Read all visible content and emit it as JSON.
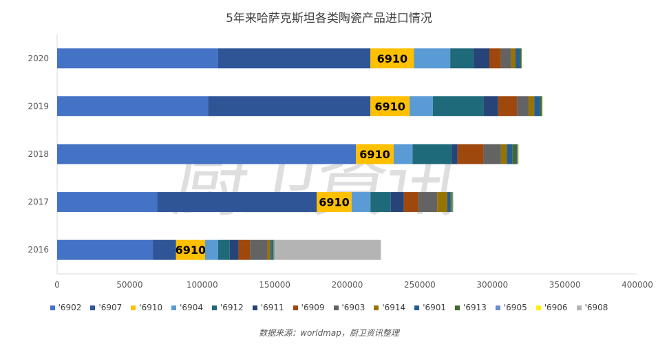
{
  "title": "5年来哈萨克斯坦各类陶瓷产品进口情况",
  "source": "数据来源：worldmap，厨卫资讯整理",
  "watermark_text": "厨卫資讯",
  "bar_label": "6910",
  "chart_data": {
    "type": "bar",
    "orientation": "horizontal",
    "stacked": true,
    "title": "5年来哈萨克斯坦各类陶瓷产品进口情况",
    "categories": [
      "2016",
      "2017",
      "2018",
      "2019",
      "2020"
    ],
    "xlim": [
      0,
      400000
    ],
    "xticks": [
      0,
      50000,
      100000,
      150000,
      200000,
      250000,
      300000,
      350000,
      400000
    ],
    "legend_position": "bottom",
    "grid": false,
    "series": [
      {
        "name": "'6902",
        "color": "#4472C4",
        "values": [
          66000,
          69000,
          206000,
          104000,
          111000
        ]
      },
      {
        "name": "'6907",
        "color": "#2F5597",
        "values": [
          16000,
          110000,
          0,
          112000,
          105000
        ]
      },
      {
        "name": "'6910",
        "color": "#FFC000",
        "values": [
          20000,
          24000,
          26000,
          27000,
          30000
        ]
      },
      {
        "name": "'6904",
        "color": "#5B9BD5",
        "values": [
          9000,
          13000,
          13000,
          16000,
          25000
        ]
      },
      {
        "name": "'6912",
        "color": "#1F6A7A",
        "values": [
          8000,
          14000,
          27000,
          35000,
          16000
        ]
      },
      {
        "name": "'6911",
        "color": "#264478",
        "values": [
          6000,
          9000,
          4000,
          10000,
          11000
        ]
      },
      {
        "name": "'6909",
        "color": "#9E480E",
        "values": [
          8000,
          10000,
          18000,
          13000,
          8000
        ]
      },
      {
        "name": "'6903",
        "color": "#636363",
        "values": [
          12000,
          13000,
          12000,
          8000,
          7000
        ]
      },
      {
        "name": "'6914",
        "color": "#997300",
        "values": [
          2000,
          7000,
          4000,
          4000,
          3000
        ]
      },
      {
        "name": "'6901",
        "color": "#255E91",
        "values": [
          1000,
          2000,
          4000,
          4000,
          3000
        ]
      },
      {
        "name": "'6913",
        "color": "#43682B",
        "values": [
          1000,
          1000,
          3000,
          1000,
          1000
        ]
      },
      {
        "name": "'6905",
        "color": "#698ED0",
        "values": [
          1000,
          1000,
          1000,
          500,
          300
        ]
      },
      {
        "name": "'6906",
        "color": "#FFF200",
        "values": [
          200,
          100,
          100,
          200,
          100
        ]
      },
      {
        "name": "'6908",
        "color": "#B4B4B4",
        "values": [
          73000,
          0,
          0,
          0,
          0
        ]
      }
    ]
  }
}
